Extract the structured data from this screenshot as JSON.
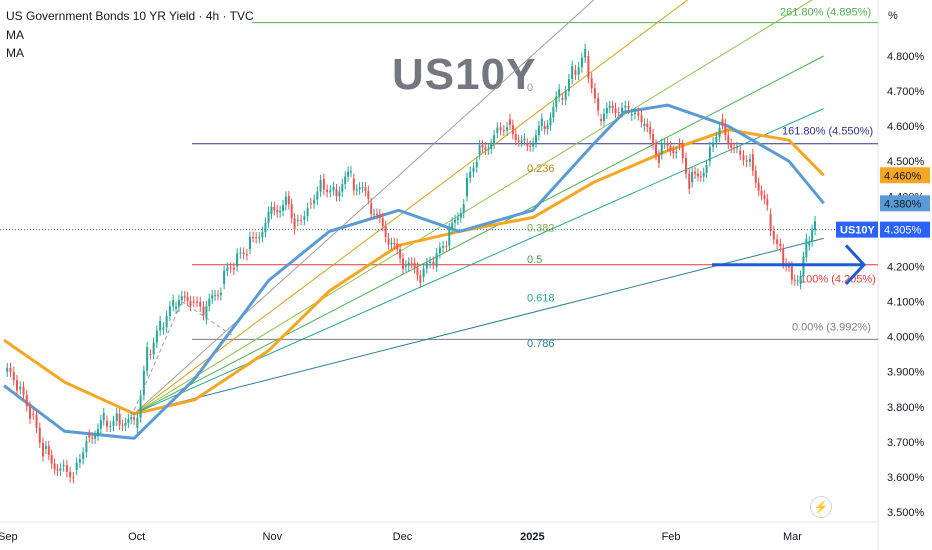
{
  "header": {
    "title": "US Government Bonds 10 YR Yield · 4h · TVC",
    "indicator1": "MA",
    "indicator2": "MA"
  },
  "watermark": "US10Y",
  "axis_unit": "%",
  "colors": {
    "price_up": "#26a69a",
    "price_down": "#ef5350",
    "ma_fast": "#5b9bd5",
    "ma_slow": "#f5a623",
    "fib_1618": "#2e3192",
    "fib_level_red": "#e53935",
    "arrow": "#1e5bd6",
    "tag_symbol": "#2962ff"
  },
  "chart_data": {
    "type": "line",
    "symbol": "US10Y",
    "xlabels": [
      "Sep",
      "Oct",
      "Nov",
      "Dec",
      "2025",
      "Feb",
      "Mar"
    ],
    "y_ticks": [
      "3.500%",
      "3.600%",
      "3.700%",
      "3.800%",
      "3.900%",
      "4.000%",
      "4.100%",
      "4.200%",
      "4.300%",
      "4.400%",
      "4.500%",
      "4.600%",
      "4.700%",
      "4.800%"
    ],
    "ylim": [
      3.49,
      4.96
    ],
    "grid": false,
    "price_path": [
      {
        "date": "2024-09-01",
        "y": 3.9
      },
      {
        "date": "2024-09-04",
        "y": 3.85
      },
      {
        "date": "2024-09-07",
        "y": 3.78
      },
      {
        "date": "2024-09-10",
        "y": 3.68
      },
      {
        "date": "2024-09-14",
        "y": 3.63
      },
      {
        "date": "2024-09-17",
        "y": 3.62
      },
      {
        "date": "2024-09-20",
        "y": 3.72
      },
      {
        "date": "2024-09-24",
        "y": 3.76
      },
      {
        "date": "2024-09-27",
        "y": 3.78
      },
      {
        "date": "2024-10-01",
        "y": 3.74
      },
      {
        "date": "2024-10-04",
        "y": 3.95
      },
      {
        "date": "2024-10-07",
        "y": 4.02
      },
      {
        "date": "2024-10-10",
        "y": 4.08
      },
      {
        "date": "2024-10-14",
        "y": 4.1
      },
      {
        "date": "2024-10-17",
        "y": 4.05
      },
      {
        "date": "2024-10-21",
        "y": 4.15
      },
      {
        "date": "2024-10-24",
        "y": 4.2
      },
      {
        "date": "2024-10-27",
        "y": 4.25
      },
      {
        "date": "2024-11-01",
        "y": 4.35
      },
      {
        "date": "2024-11-05",
        "y": 4.4
      },
      {
        "date": "2024-11-07",
        "y": 4.33
      },
      {
        "date": "2024-11-10",
        "y": 4.38
      },
      {
        "date": "2024-11-13",
        "y": 4.45
      },
      {
        "date": "2024-11-16",
        "y": 4.42
      },
      {
        "date": "2024-11-20",
        "y": 4.45
      },
      {
        "date": "2024-11-24",
        "y": 4.38
      },
      {
        "date": "2024-11-28",
        "y": 4.28
      },
      {
        "date": "2024-12-02",
        "y": 4.2
      },
      {
        "date": "2024-12-06",
        "y": 4.17
      },
      {
        "date": "2024-12-09",
        "y": 4.2
      },
      {
        "date": "2024-12-12",
        "y": 4.26
      },
      {
        "date": "2024-12-16",
        "y": 4.4
      },
      {
        "date": "2024-12-19",
        "y": 4.52
      },
      {
        "date": "2024-12-23",
        "y": 4.58
      },
      {
        "date": "2024-12-26",
        "y": 4.62
      },
      {
        "date": "2024-12-30",
        "y": 4.55
      },
      {
        "date": "2025-01-03",
        "y": 4.6
      },
      {
        "date": "2025-01-07",
        "y": 4.68
      },
      {
        "date": "2025-01-10",
        "y": 4.76
      },
      {
        "date": "2025-01-13",
        "y": 4.8
      },
      {
        "date": "2025-01-16",
        "y": 4.62
      },
      {
        "date": "2025-01-20",
        "y": 4.64
      },
      {
        "date": "2025-01-23",
        "y": 4.63
      },
      {
        "date": "2025-01-26",
        "y": 4.6
      },
      {
        "date": "2025-01-30",
        "y": 4.52
      },
      {
        "date": "2025-02-03",
        "y": 4.55
      },
      {
        "date": "2025-02-06",
        "y": 4.44
      },
      {
        "date": "2025-02-10",
        "y": 4.5
      },
      {
        "date": "2025-02-13",
        "y": 4.62
      },
      {
        "date": "2025-02-17",
        "y": 4.53
      },
      {
        "date": "2025-02-20",
        "y": 4.52
      },
      {
        "date": "2025-02-24",
        "y": 4.35
      },
      {
        "date": "2025-02-27",
        "y": 4.25
      },
      {
        "date": "2025-03-01",
        "y": 4.2
      },
      {
        "date": "2025-03-03",
        "y": 4.15
      },
      {
        "date": "2025-03-05",
        "y": 4.26
      },
      {
        "date": "2025-03-07",
        "y": 4.305
      }
    ],
    "ma_fast": [
      {
        "date": "2024-09-01",
        "y": 3.86
      },
      {
        "date": "2024-09-15",
        "y": 3.73
      },
      {
        "date": "2024-10-01",
        "y": 3.71
      },
      {
        "date": "2024-10-15",
        "y": 3.88
      },
      {
        "date": "2024-11-01",
        "y": 4.16
      },
      {
        "date": "2024-11-15",
        "y": 4.3
      },
      {
        "date": "2024-12-01",
        "y": 4.36
      },
      {
        "date": "2024-12-15",
        "y": 4.3
      },
      {
        "date": "2025-01-01",
        "y": 4.36
      },
      {
        "date": "2025-01-15",
        "y": 4.55
      },
      {
        "date": "2025-01-22",
        "y": 4.64
      },
      {
        "date": "2025-02-01",
        "y": 4.66
      },
      {
        "date": "2025-02-15",
        "y": 4.6
      },
      {
        "date": "2025-03-01",
        "y": 4.5
      },
      {
        "date": "2025-03-09",
        "y": 4.38
      }
    ],
    "ma_slow": [
      {
        "date": "2024-09-01",
        "y": 3.99
      },
      {
        "date": "2024-09-15",
        "y": 3.87
      },
      {
        "date": "2024-10-01",
        "y": 3.78
      },
      {
        "date": "2024-10-15",
        "y": 3.82
      },
      {
        "date": "2024-11-01",
        "y": 3.96
      },
      {
        "date": "2024-11-15",
        "y": 4.13
      },
      {
        "date": "2024-12-01",
        "y": 4.26
      },
      {
        "date": "2024-12-15",
        "y": 4.3
      },
      {
        "date": "2025-01-01",
        "y": 4.34
      },
      {
        "date": "2025-01-15",
        "y": 4.44
      },
      {
        "date": "2025-02-01",
        "y": 4.53
      },
      {
        "date": "2025-02-15",
        "y": 4.59
      },
      {
        "date": "2025-03-01",
        "y": 4.56
      },
      {
        "date": "2025-03-09",
        "y": 4.46
      }
    ],
    "fib_levels": [
      {
        "label": "261.80% (4.895%)",
        "y": 4.895
      },
      {
        "label": "161.80% (4.550%)",
        "y": 4.55
      },
      {
        "label": "100% (4.205%)",
        "y": 4.205
      },
      {
        "label": "0.00% (3.992%)",
        "y": 3.992
      }
    ],
    "fan_labels": [
      "0",
      "0.236",
      "0.382",
      "0.5",
      "0.618",
      "0.786"
    ],
    "fan_origin": {
      "date": "2024-10-01",
      "y": 3.78
    },
    "fan_end_date": "2025-03-09",
    "fan_end_values": [
      5.55,
      5.25,
      4.98,
      4.8,
      4.65,
      4.28
    ],
    "price_tags": [
      {
        "label": "4.460%",
        "y": 4.46,
        "color": "#f5a623",
        "text": "#131722"
      },
      {
        "label": "4.380%",
        "y": 4.38,
        "color": "#5b9bd5",
        "text": "#131722"
      },
      {
        "label": "4.305%",
        "y": 4.305,
        "color": "#2962ff",
        "text": "#ffffff",
        "symbol": "US10Y"
      }
    ]
  }
}
